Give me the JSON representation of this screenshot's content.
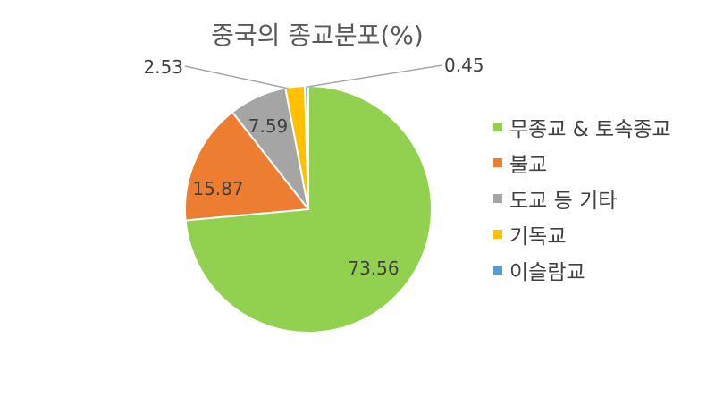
{
  "chart_data": {
    "type": "pie",
    "title": "중국의 종교분포(%)",
    "categories": [
      "무종교 & 토속종교",
      "불교",
      "도교 등 기타",
      "기독교",
      "이슬람교"
    ],
    "values": [
      73.56,
      15.87,
      7.59,
      2.53,
      0.45
    ],
    "value_labels": [
      "73.56",
      "15.87",
      "7.59",
      "2.53",
      "0.45"
    ],
    "colors": [
      "#92d050",
      "#ed7d31",
      "#a5a5a5",
      "#ffc000",
      "#5b9bd5"
    ],
    "legend_position": "right"
  }
}
